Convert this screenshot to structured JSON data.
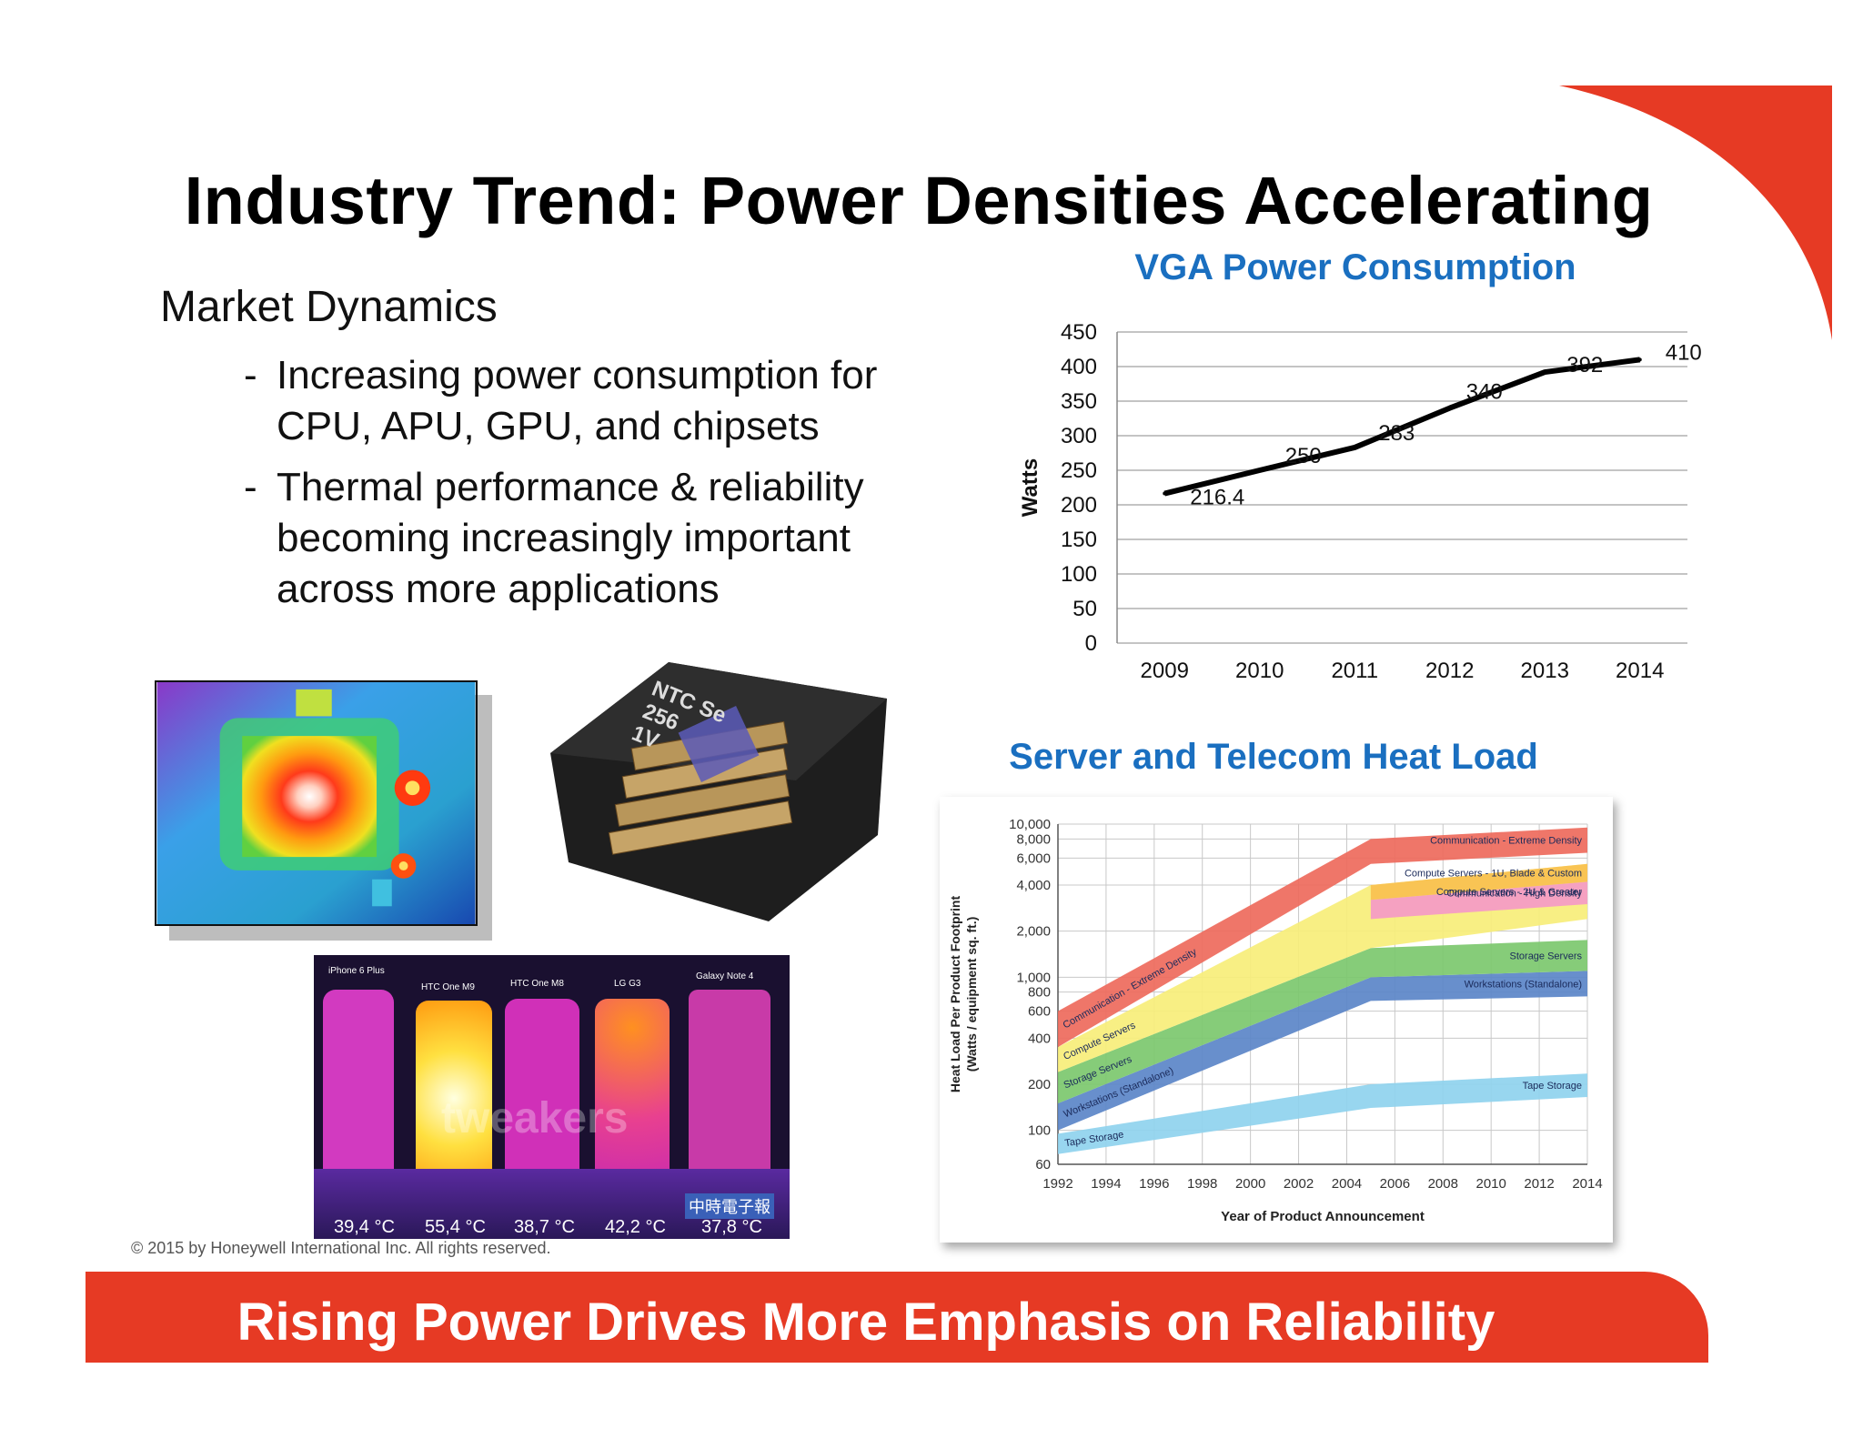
{
  "slide": {
    "title": "Industry Trend: Power Densities Accelerating",
    "banner": "Rising Power Drives More Emphasis on Reliability",
    "copyright": "© 2015 by Honeywell International Inc. All rights reserved.",
    "accent_color": "#e63a24",
    "chart_title_color": "#1a6fc0"
  },
  "market": {
    "heading": "Market Dynamics",
    "bullets": [
      {
        "dash": "-",
        "lines": [
          "Increasing power consumption for",
          "CPU, APU, GPU, and chipsets"
        ]
      },
      {
        "dash": "-",
        "lines": [
          "Thermal performance & reliability",
          "becoming increasingly important",
          "across more applications"
        ]
      }
    ]
  },
  "thermal_phones": {
    "names": [
      "iPhone 6 Plus",
      "HTC One M9",
      "HTC One M8",
      "LG G3",
      "Galaxy Note 4"
    ],
    "temps": [
      "39,4 °C",
      "55,4 °C",
      "38,7 °C",
      "42,2 °C",
      "37,8 °C"
    ],
    "watermark": "tweakers",
    "logo_text": "中時電子報"
  },
  "chip_package": {
    "label_lines": [
      "NTC Se",
      "256",
      "1V"
    ]
  },
  "chart_data": [
    {
      "type": "line",
      "title": "VGA Power Consumption",
      "ylabel": "Watts",
      "xlabel": "",
      "x": [
        "2009",
        "2010",
        "2011",
        "2012",
        "2013",
        "2014"
      ],
      "values": [
        216.4,
        250,
        283,
        340,
        392,
        410
      ],
      "data_labels": [
        "216.4",
        "250",
        "283",
        "340",
        "392",
        "410"
      ],
      "ylim": [
        0,
        450
      ],
      "yticks": [
        "0",
        "50",
        "100",
        "150",
        "200",
        "250",
        "300",
        "350",
        "400",
        "450"
      ],
      "grid": true,
      "line_color": "#000000"
    },
    {
      "type": "area",
      "title": "Server and Telecom Heat Load",
      "xlabel": "Year of Product Announcement",
      "ylabel_lines": [
        "Heat Load Per Product Footprint",
        "(Watts / equipment sq. ft.)"
      ],
      "yscale": "log",
      "ylim": [
        60,
        10000
      ],
      "xlim": [
        1992,
        2014
      ],
      "xticks": [
        "1992",
        "1994",
        "1996",
        "1998",
        "2000",
        "2002",
        "2004",
        "2006",
        "2008",
        "2010",
        "2012",
        "2014"
      ],
      "yticks": [
        {
          "label": "10,000",
          "value": 10000
        },
        {
          "label": "8,000",
          "value": 8000
        },
        {
          "label": "6,000",
          "value": 6000
        },
        {
          "label": "4,000",
          "value": 4000
        },
        {
          "label": "2,000",
          "value": 2000
        },
        {
          "label": "1,000",
          "value": 1000
        },
        {
          "label": "800",
          "value": 800
        },
        {
          "label": "600",
          "value": 600
        },
        {
          "label": "400",
          "value": 400
        },
        {
          "label": "200",
          "value": 200
        },
        {
          "label": "100",
          "value": 100
        },
        {
          "label": "60",
          "value": 60
        }
      ],
      "series": [
        {
          "name": "Tape Storage",
          "label_left": "Tape Storage",
          "label_right": "Tape Storage",
          "color": "#8fd3ee",
          "x": [
            1992,
            2005,
            2014
          ],
          "low": [
            70,
            140,
            165
          ],
          "high": [
            95,
            200,
            235
          ]
        },
        {
          "name": "Workstations (Standalone)",
          "label_left": "Workstations (Standalone)",
          "label_right": "Workstations (Standalone)",
          "color": "#5b86c8",
          "x": [
            1992,
            2005,
            2014
          ],
          "low": [
            100,
            700,
            750
          ],
          "high": [
            150,
            1000,
            1100
          ]
        },
        {
          "name": "Storage Servers",
          "label_left": "Storage Servers",
          "label_right": "Storage Servers",
          "color": "#7cc86e",
          "x": [
            1992,
            2005,
            2014
          ],
          "low": [
            150,
            1000,
            1100
          ],
          "high": [
            240,
            1550,
            1750
          ]
        },
        {
          "name": "Compute Servers",
          "label_left": "Compute Servers",
          "label_right": "Compute Servers - 2U & Greater",
          "color": "#f7ee7a",
          "x": [
            1992,
            2005,
            2014
          ],
          "low": [
            240,
            1550,
            2400
          ],
          "high": [
            350,
            4000,
            5500
          ]
        },
        {
          "name": "Communication - High Density",
          "label_left": "",
          "label_right": "Communication - High Density",
          "color": "#f49ac7",
          "x": [
            2005,
            2014
          ],
          "low": [
            2400,
            3000
          ],
          "high": [
            3200,
            4200
          ]
        },
        {
          "name": "Compute Servers - 1U, Blade & Custom",
          "label_left": "",
          "label_right": "Compute Servers - 1U, Blade & Custom",
          "color": "#f8c050",
          "x": [
            2005,
            2014
          ],
          "low": [
            3200,
            4200
          ],
          "high": [
            4000,
            5500
          ]
        },
        {
          "name": "Communication - Extreme Density",
          "label_left": "Communication - Extreme Density",
          "label_right": "Communication - Extreme Density",
          "color": "#ee6a5c",
          "x": [
            1992,
            2005,
            2014
          ],
          "low": [
            350,
            5500,
            6500
          ],
          "high": [
            600,
            8000,
            9500
          ]
        }
      ]
    }
  ]
}
